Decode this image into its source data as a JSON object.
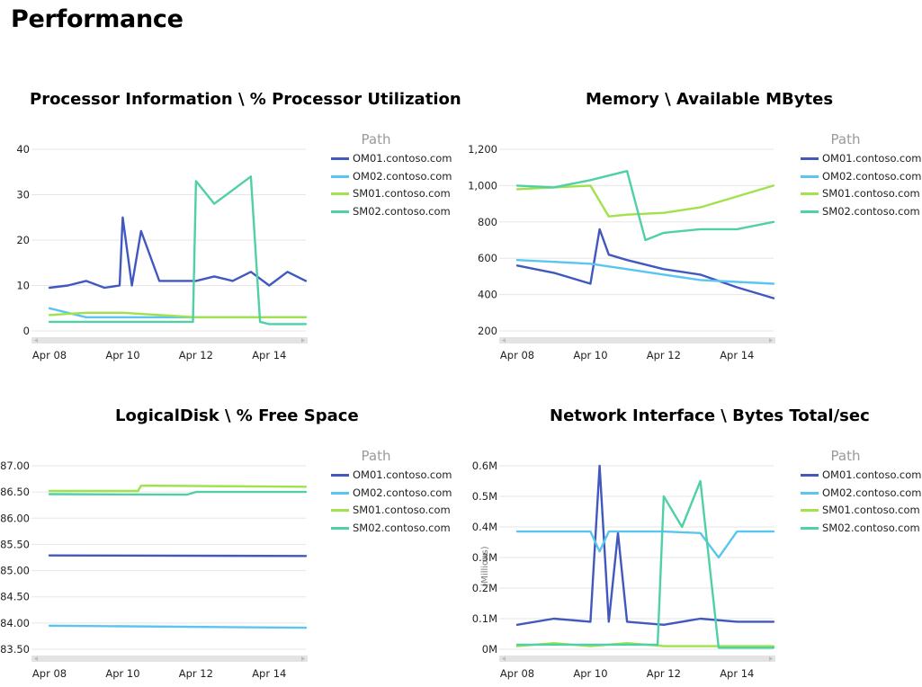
{
  "page": {
    "title": "Performance"
  },
  "series_colors": {
    "OM01": "#4158be",
    "OM02": "#5bc5f1",
    "SM01": "#9fe24c",
    "SM02": "#4fd0a6"
  },
  "legend": {
    "title": "Path",
    "items": [
      "OM01.contoso.com",
      "OM02.contoso.com",
      "SM01.contoso.com",
      "SM02.contoso.com"
    ]
  },
  "chart_data": [
    {
      "type": "line",
      "title": "Processor Information \\ % Processor Utilization",
      "x_ticks": [
        "Apr 08",
        "Apr 10",
        "Apr 12",
        "Apr 14"
      ],
      "y_ticks": [
        "40",
        "30",
        "20",
        "10",
        "0"
      ],
      "ylim": [
        0,
        40
      ],
      "xlim": [
        "Apr 08",
        "Apr 15"
      ],
      "ylabel": "",
      "grid": true,
      "legend_position": "right",
      "series": [
        {
          "key": "OM01",
          "name": "OM01.contoso.com",
          "x": [
            "Apr 08",
            "Apr 08 12:00",
            "Apr 09",
            "Apr 09 12:00",
            "Apr 09 22:00",
            "Apr 10",
            "Apr 10 06:00",
            "Apr 10 12:00",
            "Apr 11",
            "Apr 11 12:00",
            "Apr 12",
            "Apr 12 12:00",
            "Apr 13",
            "Apr 13 12:00",
            "Apr 14",
            "Apr 14 12:00",
            "Apr 15"
          ],
          "y": [
            9.5,
            10,
            11,
            9.5,
            10,
            25,
            10,
            22,
            11,
            11,
            11,
            12,
            11,
            13,
            10,
            13,
            11
          ]
        },
        {
          "key": "OM02",
          "name": "OM02.contoso.com",
          "x": [
            "Apr 08",
            "Apr 09",
            "Apr 10",
            "Apr 11",
            "Apr 12",
            "Apr 13",
            "Apr 14",
            "Apr 15"
          ],
          "y": [
            5,
            3,
            3,
            3,
            3,
            3,
            3,
            3
          ]
        },
        {
          "key": "SM01",
          "name": "SM01.contoso.com",
          "x": [
            "Apr 08",
            "Apr 09",
            "Apr 10",
            "Apr 11",
            "Apr 12",
            "Apr 13",
            "Apr 14",
            "Apr 15"
          ],
          "y": [
            3.5,
            4,
            4,
            3.5,
            3,
            3,
            3,
            3
          ]
        },
        {
          "key": "SM02",
          "name": "SM02.contoso.com",
          "x": [
            "Apr 08",
            "Apr 09",
            "Apr 10",
            "Apr 11",
            "Apr 11 22:00",
            "Apr 12",
            "Apr 12 12:00",
            "Apr 13",
            "Apr 13 12:00",
            "Apr 13 18:00",
            "Apr 14",
            "Apr 15"
          ],
          "y": [
            2,
            2,
            2,
            2,
            2,
            33,
            28,
            31,
            34,
            2,
            1.5,
            1.5
          ]
        }
      ]
    },
    {
      "type": "line",
      "title": "Memory \\ Available MBytes",
      "x_ticks": [
        "Apr 08",
        "Apr 10",
        "Apr 12",
        "Apr 14"
      ],
      "y_ticks": [
        "1,200",
        "1,000",
        "800",
        "600",
        "400",
        "200"
      ],
      "ylim": [
        200,
        1200
      ],
      "xlim": [
        "Apr 08",
        "Apr 15"
      ],
      "ylabel": "",
      "grid": true,
      "legend_position": "right",
      "series": [
        {
          "key": "OM01",
          "name": "OM01.contoso.com",
          "x": [
            "Apr 08",
            "Apr 09",
            "Apr 10",
            "Apr 10 06:00",
            "Apr 10 12:00",
            "Apr 11",
            "Apr 12",
            "Apr 13",
            "Apr 14",
            "Apr 15"
          ],
          "y": [
            560,
            520,
            460,
            760,
            620,
            590,
            540,
            510,
            440,
            380
          ]
        },
        {
          "key": "OM02",
          "name": "OM02.contoso.com",
          "x": [
            "Apr 08",
            "Apr 09",
            "Apr 10",
            "Apr 11",
            "Apr 12",
            "Apr 13",
            "Apr 14",
            "Apr 15"
          ],
          "y": [
            590,
            580,
            570,
            540,
            510,
            480,
            470,
            460
          ]
        },
        {
          "key": "SM01",
          "name": "SM01.contoso.com",
          "x": [
            "Apr 08",
            "Apr 09",
            "Apr 10",
            "Apr 10 12:00",
            "Apr 11",
            "Apr 12",
            "Apr 13",
            "Apr 14",
            "Apr 15"
          ],
          "y": [
            980,
            990,
            1000,
            830,
            840,
            850,
            880,
            940,
            1000
          ]
        },
        {
          "key": "SM02",
          "name": "SM02.contoso.com",
          "x": [
            "Apr 08",
            "Apr 09",
            "Apr 10",
            "Apr 11",
            "Apr 11 12:00",
            "Apr 12",
            "Apr 13",
            "Apr 14",
            "Apr 15"
          ],
          "y": [
            1000,
            990,
            1030,
            1080,
            700,
            740,
            760,
            760,
            800
          ]
        }
      ]
    },
    {
      "type": "line",
      "title": "LogicalDisk \\ % Free Space",
      "x_ticks": [
        "Apr 08",
        "Apr 10",
        "Apr 12",
        "Apr 14"
      ],
      "y_ticks": [
        "87.00",
        "86.50",
        "86.00",
        "85.50",
        "85.00",
        "84.50",
        "84.00",
        "83.50"
      ],
      "ylim": [
        83.5,
        87.0
      ],
      "xlim": [
        "Apr 08",
        "Apr 15"
      ],
      "ylabel": "",
      "grid": true,
      "legend_position": "right",
      "series": [
        {
          "key": "OM01",
          "name": "OM01.contoso.com",
          "x": [
            "Apr 08",
            "Apr 15"
          ],
          "y": [
            85.29,
            85.28
          ]
        },
        {
          "key": "OM02",
          "name": "OM02.contoso.com",
          "x": [
            "Apr 08",
            "Apr 15"
          ],
          "y": [
            83.95,
            83.91
          ]
        },
        {
          "key": "SM01",
          "name": "SM01.contoso.com",
          "x": [
            "Apr 08",
            "Apr 10 10:00",
            "Apr 10 12:00",
            "Apr 15"
          ],
          "y": [
            86.52,
            86.52,
            86.62,
            86.6
          ]
        },
        {
          "key": "SM02",
          "name": "SM02.contoso.com",
          "x": [
            "Apr 08",
            "Apr 11 18:00",
            "Apr 12",
            "Apr 15"
          ],
          "y": [
            86.46,
            86.45,
            86.5,
            86.5
          ]
        }
      ]
    },
    {
      "type": "line",
      "title": "Network Interface \\ Bytes Total/sec",
      "x_ticks": [
        "Apr 08",
        "Apr 10",
        "Apr 12",
        "Apr 14"
      ],
      "y_ticks": [
        "0.6M",
        "0.5M",
        "0.4M",
        "0.3M",
        "0.2M",
        "0.1M",
        "0M"
      ],
      "ylim": [
        0,
        0.6
      ],
      "xlim": [
        "Apr 08",
        "Apr 15"
      ],
      "ylabel": "(Millions)",
      "grid": true,
      "legend_position": "right",
      "series": [
        {
          "key": "OM01",
          "name": "OM01.contoso.com",
          "x": [
            "Apr 08",
            "Apr 09",
            "Apr 10",
            "Apr 10 06:00",
            "Apr 10 12:00",
            "Apr 10 18:00",
            "Apr 11",
            "Apr 12",
            "Apr 13",
            "Apr 14",
            "Apr 15"
          ],
          "y": [
            0.08,
            0.1,
            0.09,
            0.6,
            0.09,
            0.38,
            0.09,
            0.08,
            0.1,
            0.09,
            0.09
          ]
        },
        {
          "key": "OM02",
          "name": "OM02.contoso.com",
          "x": [
            "Apr 08",
            "Apr 10",
            "Apr 10 06:00",
            "Apr 10 12:00",
            "Apr 11",
            "Apr 12",
            "Apr 13",
            "Apr 13 12:00",
            "Apr 14",
            "Apr 15"
          ],
          "y": [
            0.385,
            0.385,
            0.32,
            0.385,
            0.385,
            0.385,
            0.38,
            0.3,
            0.385,
            0.385
          ]
        },
        {
          "key": "SM01",
          "name": "SM01.contoso.com",
          "x": [
            "Apr 08",
            "Apr 09",
            "Apr 10",
            "Apr 11",
            "Apr 12",
            "Apr 13",
            "Apr 14",
            "Apr 15"
          ],
          "y": [
            0.01,
            0.02,
            0.01,
            0.02,
            0.01,
            0.01,
            0.01,
            0.01
          ]
        },
        {
          "key": "SM02",
          "name": "SM02.contoso.com",
          "x": [
            "Apr 08",
            "Apr 10",
            "Apr 11",
            "Apr 11 20:00",
            "Apr 12",
            "Apr 12 12:00",
            "Apr 13",
            "Apr 13 12:00",
            "Apr 14",
            "Apr 15"
          ],
          "y": [
            0.015,
            0.015,
            0.015,
            0.015,
            0.5,
            0.4,
            0.55,
            0.005,
            0.005,
            0.005
          ]
        }
      ]
    }
  ]
}
